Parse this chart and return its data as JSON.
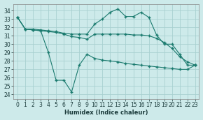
{
  "title": "",
  "xlabel": "Humidex (Indice chaleur)",
  "bg_color": "#cdeaea",
  "grid_color": "#a8d0d0",
  "line_color": "#1a7a6e",
  "ylim": [
    23.5,
    34.8
  ],
  "xlim": [
    -0.5,
    23.5
  ],
  "yticks": [
    24,
    25,
    26,
    27,
    28,
    29,
    30,
    31,
    32,
    33,
    34
  ],
  "xticks": [
    0,
    1,
    2,
    3,
    4,
    5,
    6,
    7,
    8,
    9,
    10,
    11,
    12,
    13,
    14,
    15,
    16,
    17,
    18,
    19,
    20,
    21,
    22,
    23
  ],
  "series": [
    {
      "x": [
        0,
        1,
        2,
        3,
        4,
        5,
        6,
        7,
        8,
        9,
        10,
        11,
        12,
        13,
        14,
        15,
        16,
        17,
        18,
        19,
        20,
        21,
        22,
        23
      ],
      "y": [
        33.2,
        31.8,
        31.8,
        31.7,
        31.6,
        31.5,
        31.3,
        31.2,
        31.2,
        31.2,
        32.4,
        33.0,
        33.8,
        34.2,
        33.3,
        33.3,
        33.8,
        33.2,
        31.1,
        30.0,
        30.0,
        28.8,
        27.5,
        27.5
      ]
    },
    {
      "x": [
        0,
        1,
        2,
        3,
        4,
        5,
        6,
        7,
        8,
        9,
        10,
        11,
        12,
        13,
        14,
        15,
        16,
        17,
        18,
        19,
        20,
        21,
        22,
        23
      ],
      "y": [
        33.2,
        31.8,
        31.7,
        31.6,
        31.5,
        31.4,
        31.2,
        30.9,
        30.8,
        30.6,
        31.2,
        31.2,
        31.2,
        31.2,
        31.2,
        31.1,
        31.1,
        31.0,
        30.7,
        30.2,
        29.5,
        28.5,
        27.9,
        27.5
      ]
    },
    {
      "x": [
        0,
        1,
        2,
        3,
        4,
        5,
        6,
        7,
        8,
        9,
        10,
        11,
        12,
        13,
        14,
        15,
        16,
        17,
        18,
        19,
        20,
        21,
        22,
        23
      ],
      "y": [
        33.2,
        31.8,
        31.7,
        31.6,
        29.0,
        25.7,
        25.7,
        24.3,
        27.5,
        28.8,
        28.3,
        28.1,
        28.0,
        27.9,
        27.7,
        27.6,
        27.5,
        27.4,
        27.3,
        27.2,
        27.1,
        27.0,
        27.0,
        27.5
      ]
    }
  ]
}
